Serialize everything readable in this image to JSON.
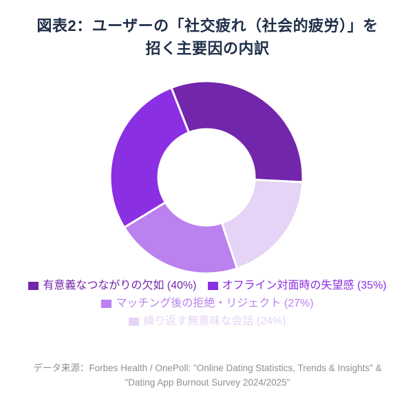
{
  "title": {
    "line1": "図表2：ユーザーの「社交疲れ（社会的疲労）」を",
    "line2": "招く主要因の内訳"
  },
  "chart_data": {
    "type": "pie",
    "subtype": "donut",
    "title": "図表2：ユーザーの「社交疲れ（社会的疲労）」を招く主要因の内訳",
    "labels": [
      "有意義なつながりの欠如",
      "オフライン対面時の失望感",
      "マッチング後の拒絶・リジェクト",
      "繰り返す無意味な会話"
    ],
    "values": [
      40,
      35,
      27,
      24
    ],
    "unit": "%",
    "colors": [
      "#7226ab",
      "#8b2fe2",
      "#bb81ee",
      "#e5d4f6"
    ],
    "legend_labels": [
      "有意義なつながりの欠如 (40%)",
      "オフライン対面時の失望感 (35%)",
      "マッチング後の拒絶・リジェクト (27%)",
      "繰り返す無意味な会話 (24%)"
    ],
    "legend_position": "bottom",
    "cutout_ratio": 0.5,
    "start_angle_deg": -21.4,
    "segment_order_clockwise": [
      0,
      3,
      2,
      1
    ],
    "border_color": "#ffffff",
    "border_width": 3
  },
  "footer": {
    "text": "データ来源：Forbes Health / OnePoll: \"Online Dating Statistics, Trends & Insights\" & \"Dating App Burnout Survey 2024/2025\""
  },
  "style": {
    "title_color": "#1e2d48",
    "footer_color": "#8f8f8f",
    "background": "#ffffff"
  }
}
